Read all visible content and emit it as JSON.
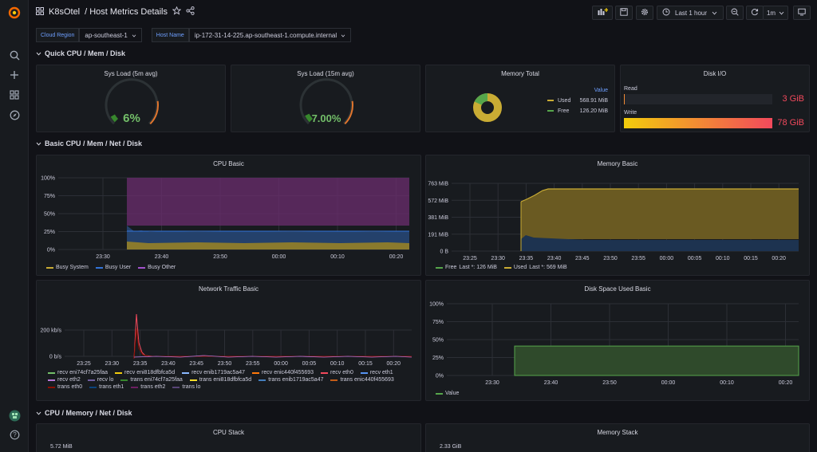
{
  "header": {
    "folder": "K8sOtel",
    "separator": "/",
    "dashboard_title": "Host Metrics Details",
    "time_range": "Last 1 hour",
    "refresh_interval": "1m"
  },
  "variables": [
    {
      "label": "Cloud Region",
      "value": "ap-southeast-1"
    },
    {
      "label": "Host Name",
      "value": "ip-172-31-14-225.ap-southeast-1.compute.internal"
    }
  ],
  "rows": {
    "quick": "Quick CPU / Mem / Disk",
    "basic": "Basic CPU / Mem / Net / Disk",
    "detail": "CPU / Memory / Net / Disk"
  },
  "quick_panels": {
    "sys_load_5m": {
      "title": "Sys Load (5m avg)",
      "value": "6%",
      "fraction": 0.06
    },
    "sys_load_15m": {
      "title": "Sys Load (15m avg)",
      "value": "7.00%",
      "fraction": 0.07
    },
    "memory_total": {
      "title": "Memory Total",
      "header": "Value",
      "items": [
        {
          "name": "Used",
          "value": "568.91 MiB",
          "color": "#c9ac34"
        },
        {
          "name": "Free",
          "value": "126.20 MiB",
          "color": "#56a64b"
        }
      ]
    },
    "disk_io": {
      "title": "Disk I/O",
      "read_label": "Read",
      "read_value": "3 GiB",
      "read_fraction": 0.005,
      "write_label": "Write",
      "write_value": "78 GiB",
      "write_fraction": 1.0
    }
  },
  "chart_data": [
    {
      "type": "area",
      "title": "CPU Basic",
      "y_ticks": [
        "100%",
        "75%",
        "50%",
        "25%",
        "0%"
      ],
      "x_ticks": [
        "23:30",
        "23:40",
        "23:50",
        "00:00",
        "00:10",
        "00:20"
      ],
      "ylim": [
        0,
        100
      ],
      "series": [
        {
          "name": "Busy System",
          "color": "#c9ac34",
          "values": [
            0,
            0,
            5,
            5,
            5,
            5,
            5,
            5
          ]
        },
        {
          "name": "Busy User",
          "color": "#3274d9",
          "values": [
            0,
            0,
            18,
            17,
            17,
            17,
            17,
            17
          ]
        },
        {
          "name": "Busy Other",
          "color": "#a352cc",
          "values": [
            0,
            0,
            77,
            78,
            78,
            78,
            78,
            78
          ]
        }
      ]
    },
    {
      "type": "area",
      "title": "Memory Basic",
      "y_ticks": [
        "763 MiB",
        "572 MiB",
        "381 MiB",
        "191 MiB",
        "0 B"
      ],
      "x_ticks": [
        "23:25",
        "23:30",
        "23:35",
        "23:40",
        "23:45",
        "23:50",
        "23:55",
        "00:00",
        "00:05",
        "00:10",
        "00:15",
        "00:20"
      ],
      "series": [
        {
          "name": "Free",
          "legend_detail": "Last *: 126 MiB",
          "color": "#56a64b"
        },
        {
          "name": "Used",
          "legend_detail": "Last *: 569 MiB",
          "color": "#c9ac34"
        }
      ]
    },
    {
      "type": "line",
      "title": "Network Traffic Basic",
      "y_ticks": [
        "200 kb/s",
        "0 b/s"
      ],
      "x_ticks": [
        "23:25",
        "23:30",
        "23:35",
        "23:40",
        "23:45",
        "23:50",
        "23:55",
        "00:00",
        "00:05",
        "00:10",
        "00:15",
        "00:20"
      ],
      "series": [
        {
          "name": "recv eni74cf7a25faa",
          "color": "#73bf69"
        },
        {
          "name": "recv eni818dfbfca5d",
          "color": "#f2cc0c"
        },
        {
          "name": "recv enib1719ac5a47",
          "color": "#8ab8ff"
        },
        {
          "name": "recv enic440f455693",
          "color": "#ff780a"
        },
        {
          "name": "recv eth0",
          "color": "#f2495c"
        },
        {
          "name": "recv eth1",
          "color": "#5794f2"
        },
        {
          "name": "recv eth2",
          "color": "#b877d9"
        },
        {
          "name": "recv lo",
          "color": "#705da0"
        },
        {
          "name": "trans eni74cf7a25faa",
          "color": "#37872d"
        },
        {
          "name": "trans eni818dfbfca5d",
          "color": "#fade2a"
        },
        {
          "name": "trans enib1719ac5a47",
          "color": "#447ebc"
        },
        {
          "name": "trans enic440f455693",
          "color": "#c15c17"
        },
        {
          "name": "trans eth0",
          "color": "#890f02"
        },
        {
          "name": "trans eth1",
          "color": "#0a437c"
        },
        {
          "name": "trans eth2",
          "color": "#6d1f62"
        },
        {
          "name": "trans lo",
          "color": "#584477"
        }
      ]
    },
    {
      "type": "area",
      "title": "Disk Space Used Basic",
      "y_ticks": [
        "100%",
        "75%",
        "50%",
        "25%",
        "0%"
      ],
      "x_ticks": [
        "23:30",
        "23:40",
        "23:50",
        "00:00",
        "00:10",
        "00:20"
      ],
      "ylim": [
        0,
        100
      ],
      "series": [
        {
          "name": "Value",
          "color": "#56a64b",
          "start": "23:34",
          "value": 41
        }
      ]
    }
  ],
  "bottom_panels": {
    "cpu_stack": {
      "title": "CPU Stack",
      "y_top": "5.72 MiB"
    },
    "memory_stack": {
      "title": "Memory Stack",
      "y_top": "2.33 GiB"
    }
  }
}
